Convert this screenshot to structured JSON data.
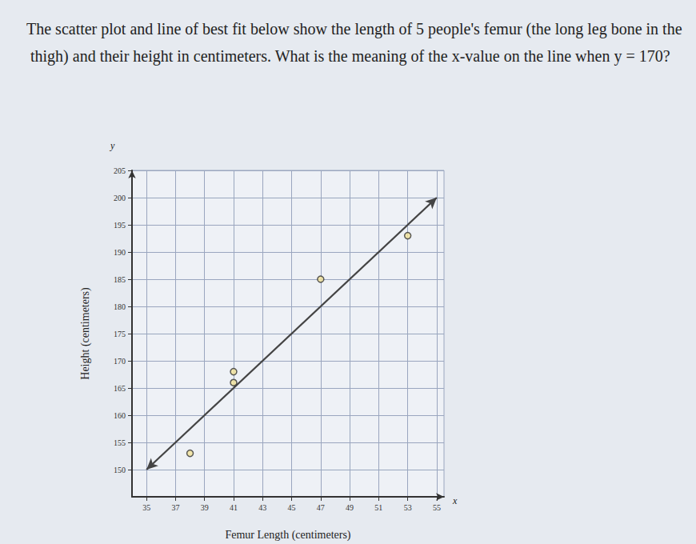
{
  "chart_data": {
    "type": "scatter",
    "title": "The scatter plot and line of best fit below show the length of 5 people's femur (the long leg bone in the thigh) and their height in centimeters. What is the meaning of the x-value on the line when y = 170?",
    "x_label": "Femur Length (centimeters)",
    "y_label": "Height (centimeters)",
    "x": [
      38,
      41,
      41,
      47,
      53
    ],
    "values": [
      153,
      166,
      168,
      185,
      193
    ],
    "best_fit": {
      "x": [
        35,
        55
      ],
      "y": [
        150,
        200
      ]
    },
    "annotations": [
      "y",
      "x"
    ],
    "xlim": [
      34,
      55.5
    ],
    "ylim": [
      145,
      205
    ],
    "xticks": [
      35,
      37,
      39,
      41,
      43,
      45,
      47,
      49,
      51,
      53,
      55
    ],
    "yticks": [
      150,
      155,
      160,
      165,
      170,
      175,
      180,
      185,
      190,
      195,
      200,
      205
    ],
    "grid": true,
    "color": "#f3e49a",
    "marker": "circle"
  }
}
